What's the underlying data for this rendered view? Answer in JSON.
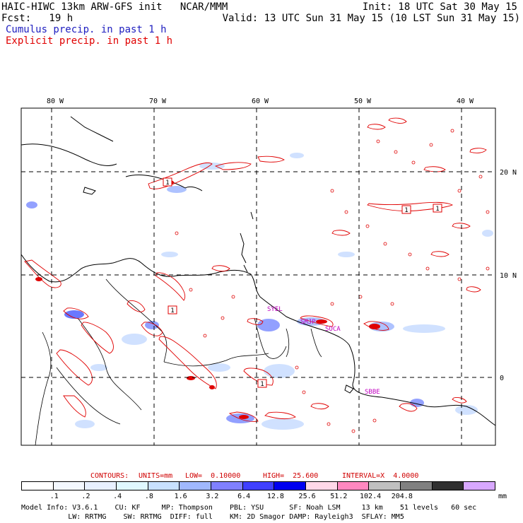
{
  "header": {
    "title": "HAIC-HIWC 13km ARW-GFS init   NCAR/MMM",
    "init": "Init: 18 UTC Sat 30 May 15",
    "fcst": "Fcst:   19 h",
    "valid": "Valid: 13 UTC Sun 31 May 15 (10 LST Sun 31 May 15)",
    "cumulus": "Cumulus precip. in past 1 h",
    "explicit": "Explicit precip. in past 1 h"
  },
  "map": {
    "lon_labels": [
      "80 W",
      "70 W",
      "60 W",
      "50 W",
      "40 W"
    ],
    "lat_labels": [
      "20 N",
      "10 N",
      "0"
    ],
    "stations": [
      {
        "label": "SYEL",
        "lon": -57.5,
        "lat": 6.8
      },
      {
        "label": "SMJP",
        "lon": -55.2,
        "lat": 5.5
      },
      {
        "label": "SOCA",
        "lon": -52.4,
        "lat": 4.8
      },
      {
        "label": "SBBE",
        "lon": -48.5,
        "lat": -1.4
      }
    ],
    "contour_labels": [
      "1",
      "1",
      "1",
      "1",
      "1"
    ],
    "colors": {
      "cumulus": "#4060ff",
      "explicit": "#e00000",
      "coast": "#000000",
      "station": "#c000c0"
    }
  },
  "contour_info": {
    "contours": "CONTOURS:",
    "units": "UNITS=mm",
    "low": "LOW=  0.10000",
    "high": "HIGH=  25.600",
    "interval": "INTERVAL=X  4.0000"
  },
  "legend": {
    "ticks": [
      ".1",
      ".2",
      ".4",
      ".8",
      "1.6",
      "3.2",
      "6.4",
      "12.8",
      "25.6",
      "51.2",
      "102.4",
      "204.8"
    ],
    "unit": "mm",
    "colors": [
      "#ffffff",
      "#f4f8ff",
      "#e8f0ff",
      "#e0f8ff",
      "#c8e0ff",
      "#a0b8ff",
      "#8080ff",
      "#4040ff",
      "#0000f0",
      "#ffd8e8",
      "#ff88c0",
      "#c0c0c0",
      "#808080",
      "#303030",
      "#d8a8ff"
    ]
  },
  "footer": {
    "line1": "Model Info: V3.6.1    CU: KF     MP: Thompson    PBL: YSU      SF: Noah LSM     13 km    51 levels   60 sec",
    "line2": "           LW: RRTMG    SW: RRTMG  DIFF: full    KM: 2D Smagor DAMP: Rayleigh3  SFLAY: MM5"
  }
}
